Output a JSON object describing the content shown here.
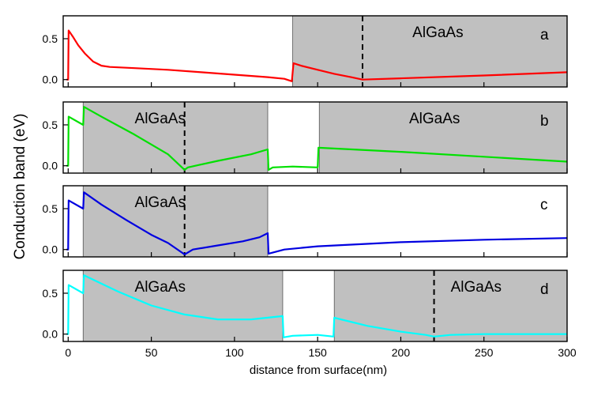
{
  "chart_data": {
    "type": "line",
    "xlabel": "distance from surface(nm)",
    "ylabel": "Conduction band (eV)",
    "xlim": [
      -3,
      300
    ],
    "ylim": [
      -0.09,
      0.78
    ],
    "x_ticks": [
      0,
      50,
      100,
      150,
      200,
      250,
      300
    ],
    "x_tick_labels": [
      "0",
      "50",
      "100",
      "150",
      "200",
      "250",
      "300"
    ],
    "y_ticks": [
      0.0,
      0.5
    ],
    "y_tick_labels": [
      "0.0",
      "0.5"
    ],
    "panels": [
      {
        "letter": "a",
        "color": "#ff0000",
        "shaded": [
          [
            135,
            300
          ]
        ],
        "region_labels": [
          {
            "text": "AlGaAs",
            "x": 207
          }
        ],
        "dashed_x": 177,
        "points": [
          [
            -1,
            0
          ],
          [
            0,
            0
          ],
          [
            0.3,
            0.6
          ],
          [
            3,
            0.52
          ],
          [
            6,
            0.42
          ],
          [
            10,
            0.32
          ],
          [
            15,
            0.22
          ],
          [
            20,
            0.17
          ],
          [
            25,
            0.155
          ],
          [
            40,
            0.14
          ],
          [
            60,
            0.12
          ],
          [
            80,
            0.09
          ],
          [
            100,
            0.06
          ],
          [
            120,
            0.03
          ],
          [
            130,
            0.01
          ],
          [
            134.5,
            -0.02
          ],
          [
            135.5,
            0.2
          ],
          [
            140,
            0.17
          ],
          [
            150,
            0.12
          ],
          [
            160,
            0.07
          ],
          [
            170,
            0.03
          ],
          [
            177,
            0
          ],
          [
            200,
            0.015
          ],
          [
            250,
            0.05
          ],
          [
            300,
            0.09
          ]
        ]
      },
      {
        "letter": "b",
        "color": "#00e000",
        "shaded": [
          [
            9,
            120
          ],
          [
            151,
            300
          ]
        ],
        "region_labels": [
          {
            "text": "AlGaAs",
            "x": 40
          },
          {
            "text": "AlGaAs",
            "x": 205
          }
        ],
        "dashed_x": 70,
        "points": [
          [
            -1,
            0
          ],
          [
            0,
            0
          ],
          [
            0.3,
            0.6
          ],
          [
            9,
            0.5
          ],
          [
            9.5,
            0.72
          ],
          [
            20,
            0.6
          ],
          [
            40,
            0.38
          ],
          [
            60,
            0.14
          ],
          [
            70,
            -0.05
          ],
          [
            72,
            -0.02
          ],
          [
            90,
            0.06
          ],
          [
            110,
            0.14
          ],
          [
            120,
            0.2
          ],
          [
            120.5,
            -0.05
          ],
          [
            123,
            -0.02
          ],
          [
            135,
            -0.01
          ],
          [
            150,
            -0.02
          ],
          [
            150.5,
            0.22
          ],
          [
            200,
            0.17
          ],
          [
            250,
            0.11
          ],
          [
            300,
            0.05
          ]
        ]
      },
      {
        "letter": "c",
        "color": "#0000e0",
        "shaded": [
          [
            9,
            120
          ]
        ],
        "region_labels": [
          {
            "text": "AlGaAs",
            "x": 40
          }
        ],
        "dashed_x": 70,
        "points": [
          [
            -1,
            0
          ],
          [
            0,
            0
          ],
          [
            0.3,
            0.6
          ],
          [
            9,
            0.5
          ],
          [
            9.5,
            0.7
          ],
          [
            20,
            0.55
          ],
          [
            35,
            0.36
          ],
          [
            50,
            0.18
          ],
          [
            60,
            0.08
          ],
          [
            70,
            -0.06
          ],
          [
            75,
            0
          ],
          [
            90,
            0.05
          ],
          [
            105,
            0.1
          ],
          [
            115,
            0.15
          ],
          [
            120,
            0.2
          ],
          [
            120.5,
            -0.05
          ],
          [
            130,
            0
          ],
          [
            150,
            0.04
          ],
          [
            200,
            0.09
          ],
          [
            250,
            0.12
          ],
          [
            300,
            0.14
          ]
        ]
      },
      {
        "letter": "d",
        "color": "#00ffff",
        "shaded": [
          [
            9,
            129
          ],
          [
            160,
            300
          ]
        ],
        "region_labels": [
          {
            "text": "AlGaAs",
            "x": 40
          },
          {
            "text": "AlGaAs",
            "x": 230
          }
        ],
        "dashed_x": 220,
        "points": [
          [
            -1,
            0
          ],
          [
            0,
            0
          ],
          [
            0.3,
            0.6
          ],
          [
            9,
            0.5
          ],
          [
            9.5,
            0.72
          ],
          [
            30,
            0.52
          ],
          [
            50,
            0.35
          ],
          [
            70,
            0.24
          ],
          [
            90,
            0.18
          ],
          [
            110,
            0.18
          ],
          [
            129,
            0.22
          ],
          [
            129.5,
            -0.04
          ],
          [
            135,
            -0.02
          ],
          [
            150,
            -0.01
          ],
          [
            159.5,
            -0.03
          ],
          [
            160,
            0.2
          ],
          [
            180,
            0.1
          ],
          [
            200,
            0.03
          ],
          [
            215,
            -0.01
          ],
          [
            220,
            -0.03
          ],
          [
            230,
            -0.01
          ],
          [
            250,
            0
          ],
          [
            300,
            0
          ]
        ]
      }
    ]
  }
}
